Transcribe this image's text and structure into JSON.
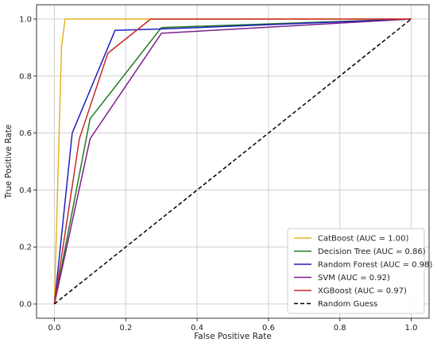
{
  "chart_data": {
    "type": "line",
    "title": "",
    "xlabel": "False Positive Rate",
    "ylabel": "True Positive Rate",
    "xlim": [
      -0.05,
      1.05
    ],
    "ylim": [
      -0.05,
      1.05
    ],
    "xticks": [
      0.0,
      0.2,
      0.4,
      0.6,
      0.8,
      1.0
    ],
    "yticks": [
      0.0,
      0.2,
      0.4,
      0.6,
      0.8,
      1.0
    ],
    "xtick_labels": [
      "0.0",
      "0.2",
      "0.4",
      "0.6",
      "0.8",
      "1.0"
    ],
    "ytick_labels": [
      "0.0",
      "0.2",
      "0.4",
      "0.6",
      "0.8",
      "1.0"
    ],
    "grid": true,
    "legend_position": "bottom-right",
    "series": [
      {
        "name": "CatBoost (AUC = 1.00)",
        "color": "#e6b422",
        "style": "solid",
        "x": [
          0.0,
          0.02,
          0.03,
          1.0
        ],
        "y": [
          0.0,
          0.9,
          1.0,
          1.0
        ]
      },
      {
        "name": "Decision Tree (AUC = 0.86)",
        "color": "#1f7a1f",
        "style": "solid",
        "x": [
          0.0,
          0.1,
          0.3,
          1.0
        ],
        "y": [
          0.0,
          0.65,
          0.97,
          1.0
        ]
      },
      {
        "name": "Random Forest (AUC = 0.98)",
        "color": "#1f1fbf",
        "style": "solid",
        "x": [
          0.0,
          0.05,
          0.17,
          0.3,
          1.0
        ],
        "y": [
          0.0,
          0.6,
          0.96,
          0.965,
          1.0
        ]
      },
      {
        "name": "SVM (AUC = 0.92)",
        "color": "#7a1f8a",
        "style": "solid",
        "x": [
          0.0,
          0.1,
          0.3,
          1.0
        ],
        "y": [
          0.0,
          0.58,
          0.95,
          1.0
        ]
      },
      {
        "name": "XGBoost (AUC = 0.97)",
        "color": "#c62828",
        "style": "solid",
        "x": [
          0.0,
          0.07,
          0.15,
          0.27,
          1.0
        ],
        "y": [
          0.0,
          0.58,
          0.88,
          1.0,
          1.0
        ]
      },
      {
        "name": "Random Guess",
        "color": "#000000",
        "style": "dashed",
        "x": [
          0.0,
          1.0
        ],
        "y": [
          0.0,
          1.0
        ]
      }
    ]
  }
}
